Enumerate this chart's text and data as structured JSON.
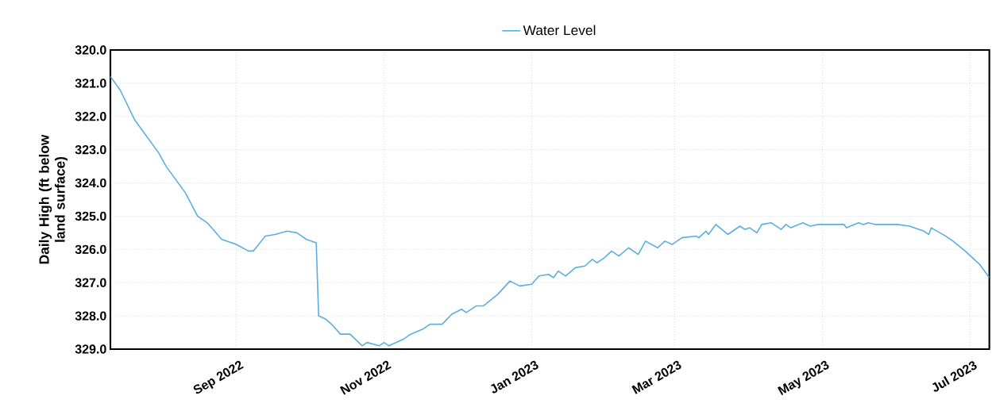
{
  "chart_data": {
    "type": "line",
    "ylabel": "Daily High (ft below land surface)",
    "x": [
      "2022-07-11",
      "2022-07-15",
      "2022-07-21",
      "2022-07-31",
      "2022-08-03",
      "2022-08-11",
      "2022-08-16",
      "2022-08-20",
      "2022-08-26",
      "2022-09-01",
      "2022-09-06",
      "2022-09-08",
      "2022-09-13",
      "2022-09-17",
      "2022-09-22",
      "2022-09-26",
      "2022-09-30",
      "2022-10-04",
      "2022-10-05",
      "2022-10-08",
      "2022-10-11",
      "2022-10-14",
      "2022-10-18",
      "2022-10-23",
      "2022-10-25",
      "2022-10-30",
      "2022-11-01",
      "2022-11-03",
      "2022-11-09",
      "2022-11-12",
      "2022-11-17",
      "2022-11-20",
      "2022-11-25",
      "2022-11-29",
      "2022-12-03",
      "2022-12-05",
      "2022-12-09",
      "2022-12-12",
      "2022-12-18",
      "2022-12-23",
      "2022-12-27",
      "2023-01-01",
      "2023-01-04",
      "2023-01-08",
      "2023-01-10",
      "2023-01-12",
      "2023-01-15",
      "2023-01-19",
      "2023-01-23",
      "2023-01-26",
      "2023-01-28",
      "2023-01-31",
      "2023-02-03",
      "2023-02-06",
      "2023-02-10",
      "2023-02-14",
      "2023-02-17",
      "2023-02-22",
      "2023-02-25",
      "2023-02-28",
      "2023-03-04",
      "2023-03-10",
      "2023-03-11",
      "2023-03-14",
      "2023-03-15",
      "2023-03-18",
      "2023-03-23",
      "2023-03-28",
      "2023-03-30",
      "2023-04-01",
      "2023-04-04",
      "2023-04-06",
      "2023-04-10",
      "2023-04-14",
      "2023-04-16",
      "2023-04-18",
      "2023-04-23",
      "2023-04-26",
      "2023-04-29",
      "2023-05-10",
      "2023-05-11",
      "2023-05-16",
      "2023-05-18",
      "2023-05-20",
      "2023-05-23",
      "2023-06-01",
      "2023-06-06",
      "2023-06-12",
      "2023-06-14",
      "2023-06-15",
      "2023-06-21",
      "2023-06-24",
      "2023-06-29",
      "2023-07-05",
      "2023-07-09"
    ],
    "series": [
      {
        "name": "Water Level",
        "color": "#5aaee0",
        "values": [
          320.8,
          321.2,
          322.1,
          323.1,
          323.5,
          324.3,
          325.0,
          325.2,
          325.7,
          325.85,
          326.05,
          326.05,
          325.6,
          325.55,
          325.45,
          325.5,
          325.7,
          325.8,
          328.0,
          328.1,
          328.3,
          328.55,
          328.55,
          328.9,
          328.8,
          328.9,
          328.8,
          328.9,
          328.7,
          328.55,
          328.4,
          328.25,
          328.25,
          327.95,
          327.8,
          327.9,
          327.7,
          327.7,
          327.35,
          326.95,
          327.1,
          327.05,
          326.8,
          326.75,
          326.85,
          326.65,
          326.8,
          326.55,
          326.5,
          326.3,
          326.4,
          326.25,
          326.05,
          326.2,
          325.95,
          326.15,
          325.75,
          325.95,
          325.75,
          325.85,
          325.65,
          325.6,
          325.65,
          325.45,
          325.55,
          325.25,
          325.55,
          325.3,
          325.4,
          325.35,
          325.5,
          325.25,
          325.2,
          325.4,
          325.25,
          325.35,
          325.2,
          325.3,
          325.25,
          325.25,
          325.35,
          325.2,
          325.25,
          325.2,
          325.25,
          325.25,
          325.3,
          325.45,
          325.55,
          325.35,
          325.6,
          325.75,
          326.05,
          326.45,
          326.85
        ]
      }
    ],
    "xlim": [
      "2022-07-11",
      "2023-07-09"
    ],
    "xticks": [
      {
        "value": "2022-09-01",
        "label": "Sep 2022"
      },
      {
        "value": "2022-11-01",
        "label": "Nov 2022"
      },
      {
        "value": "2023-01-01",
        "label": "Jan 2023"
      },
      {
        "value": "2023-03-01",
        "label": "Mar 2023"
      },
      {
        "value": "2023-05-01",
        "label": "May 2023"
      },
      {
        "value": "2023-07-01",
        "label": "Jul 2023"
      }
    ],
    "ylim": [
      329,
      320
    ],
    "yticks": [
      {
        "value": 320,
        "label": "320.0"
      },
      {
        "value": 321,
        "label": "321.0"
      },
      {
        "value": 322,
        "label": "322.0"
      },
      {
        "value": 323,
        "label": "323.0"
      },
      {
        "value": 324,
        "label": "324.0"
      },
      {
        "value": 325,
        "label": "325.0"
      },
      {
        "value": 326,
        "label": "326.0"
      },
      {
        "value": 327,
        "label": "327.0"
      },
      {
        "value": 328,
        "label": "328.0"
      },
      {
        "value": 329,
        "label": "329.0"
      }
    ],
    "grid": true,
    "legend": "top",
    "marker": "none",
    "line_style": "solid"
  }
}
